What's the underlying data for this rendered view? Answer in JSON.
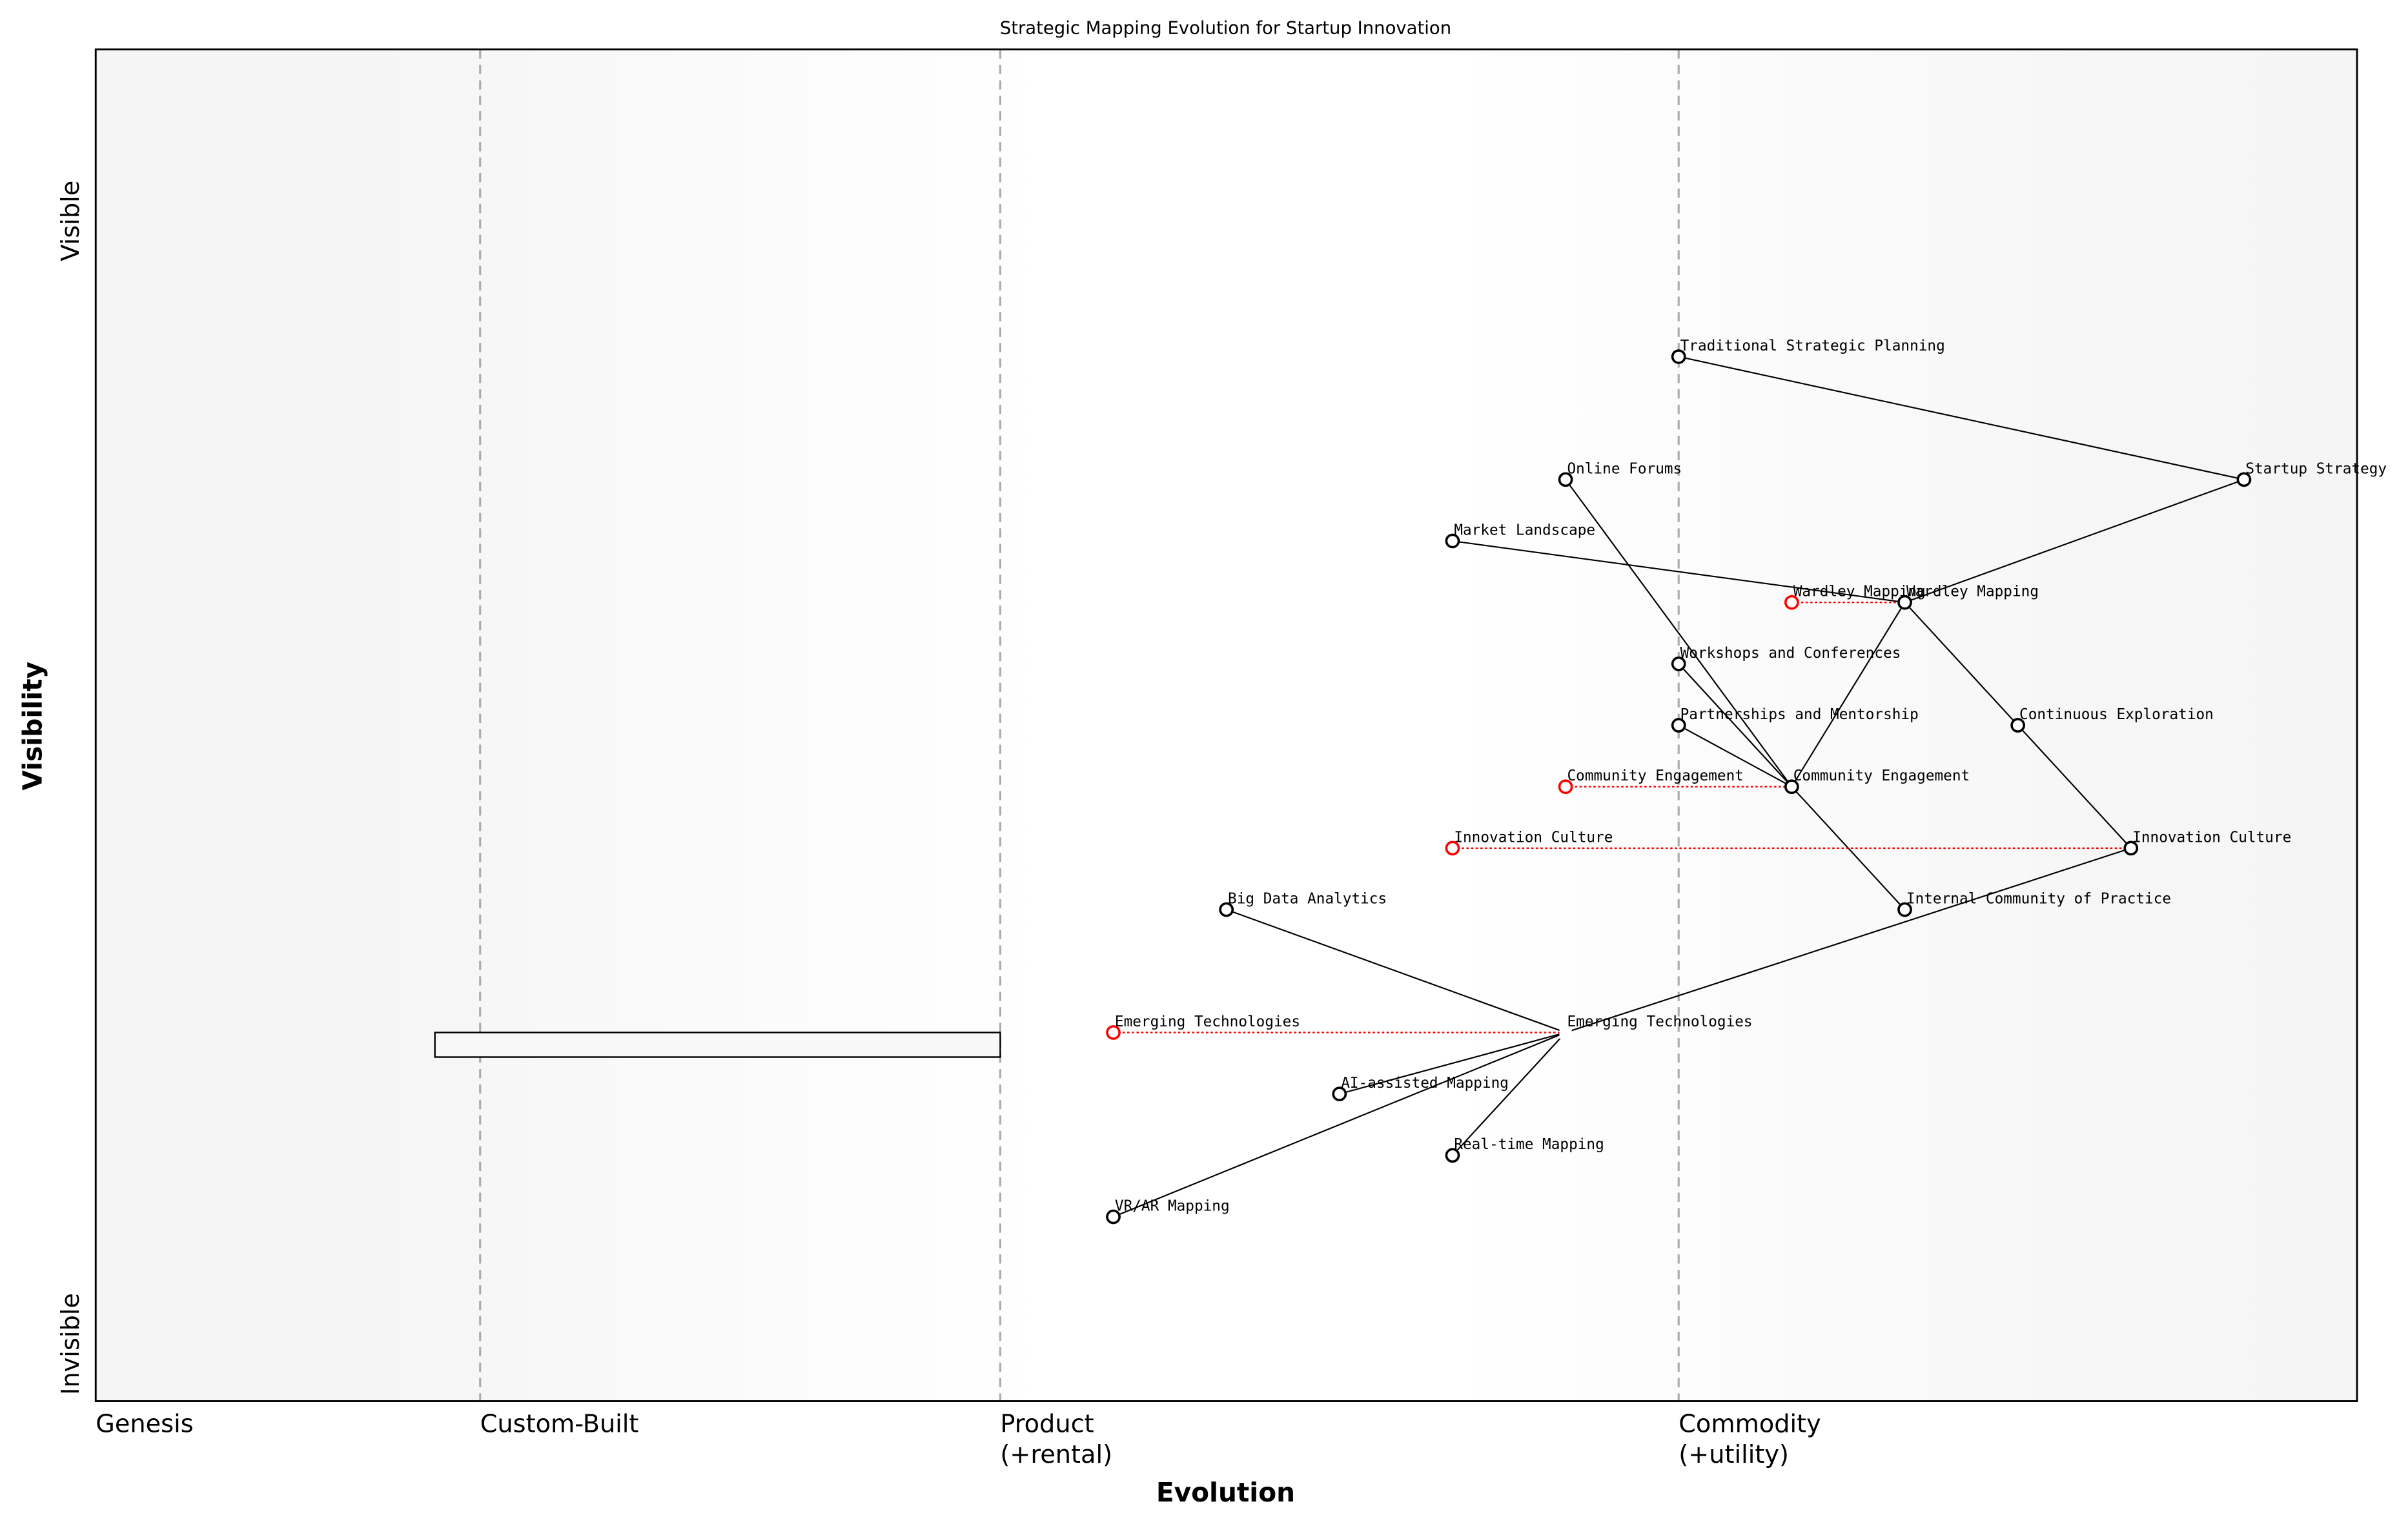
{
  "chart_data": {
    "type": "scatter",
    "subtype": "wardley-map",
    "title": "Strategic Mapping Evolution for Startup Innovation",
    "xlabel": "Evolution",
    "ylabel": "Visibility",
    "xlim": [
      0,
      1
    ],
    "ylim": [
      0,
      1.1
    ],
    "grid": false,
    "y_tick_labels": {
      "top": "Visible",
      "bottom": "Invisible"
    },
    "stages": [
      {
        "label": "Genesis",
        "x": 0,
        "dashed_line": false
      },
      {
        "label": "Custom-Built",
        "x": 0.17,
        "dashed_line": true
      },
      {
        "label": "Product",
        "label2": "(+rental)",
        "x": 0.4,
        "dashed_line": true
      },
      {
        "label": "Commodity",
        "label2": "(+utility)",
        "x": 0.7,
        "dashed_line": true
      }
    ],
    "components": [
      {
        "name": "Traditional Strategic Planning",
        "x": 0.7,
        "y": 0.85
      },
      {
        "name": "Startup Strategy",
        "x": 0.95,
        "y": 0.75
      },
      {
        "name": "Online Forums",
        "x": 0.65,
        "y": 0.75
      },
      {
        "name": "Market Landscape",
        "x": 0.6,
        "y": 0.7
      },
      {
        "name": "Wardley Mapping",
        "x": 0.8,
        "y": 0.65
      },
      {
        "name": "Workshops and Conferences",
        "x": 0.7,
        "y": 0.6
      },
      {
        "name": "Partnerships and Mentorship",
        "x": 0.7,
        "y": 0.55
      },
      {
        "name": "Continuous Exploration",
        "x": 0.85,
        "y": 0.55
      },
      {
        "name": "Community Engagement",
        "x": 0.75,
        "y": 0.5
      },
      {
        "name": "Innovation Culture",
        "x": 0.9,
        "y": 0.45
      },
      {
        "name": "Internal Community of Practice",
        "x": 0.8,
        "y": 0.4
      },
      {
        "name": "Big Data Analytics",
        "x": 0.5,
        "y": 0.4
      },
      {
        "name": "Emerging Technologies",
        "x": 0.65,
        "y": 0.3,
        "marker": "square"
      },
      {
        "name": "AI-assisted Mapping",
        "x": 0.55,
        "y": 0.25
      },
      {
        "name": "Real-time Mapping",
        "x": 0.6,
        "y": 0.2
      },
      {
        "name": "VR/AR Mapping",
        "x": 0.45,
        "y": 0.15
      }
    ],
    "evolutions": [
      {
        "name": "Wardley Mapping",
        "from_x": 0.75,
        "to_x": 0.8,
        "y": 0.65
      },
      {
        "name": "Community Engagement",
        "from_x": 0.65,
        "to_x": 0.75,
        "y": 0.5
      },
      {
        "name": "Innovation Culture",
        "from_x": 0.6,
        "to_x": 0.9,
        "y": 0.45
      },
      {
        "name": "Emerging Technologies",
        "from_x": 0.45,
        "to_x": 0.65,
        "y": 0.3
      }
    ],
    "links": [
      [
        "Traditional Strategic Planning",
        "Startup Strategy"
      ],
      [
        "Startup Strategy",
        "Wardley Mapping"
      ],
      [
        "Market Landscape",
        "Wardley Mapping"
      ],
      [
        "Online Forums",
        "Community Engagement"
      ],
      [
        "Wardley Mapping",
        "Community Engagement"
      ],
      [
        "Wardley Mapping",
        "Continuous Exploration"
      ],
      [
        "Continuous Exploration",
        "Innovation Culture"
      ],
      [
        "Workshops and Conferences",
        "Community Engagement"
      ],
      [
        "Partnerships and Mentorship",
        "Community Engagement"
      ],
      [
        "Community Engagement",
        "Internal Community of Practice"
      ],
      [
        "Innovation Culture",
        "Emerging Technologies"
      ],
      [
        "Big Data Analytics",
        "Emerging Technologies"
      ],
      [
        "Emerging Technologies",
        "AI-assisted Mapping"
      ],
      [
        "Emerging Technologies",
        "Real-time Mapping"
      ],
      [
        "Emerging Technologies",
        "VR/AR Mapping"
      ]
    ],
    "inertia": [
      {
        "x_start": 0.15,
        "x_end": 0.4,
        "y_bottom": 0.28,
        "y_top": 0.3
      }
    ],
    "colors": {
      "component": "#000000",
      "evolved": "#ff0000",
      "stage_line": "#aaaaaa",
      "background_edge": "#f5f5f5",
      "background_center": "#ffffff"
    }
  }
}
